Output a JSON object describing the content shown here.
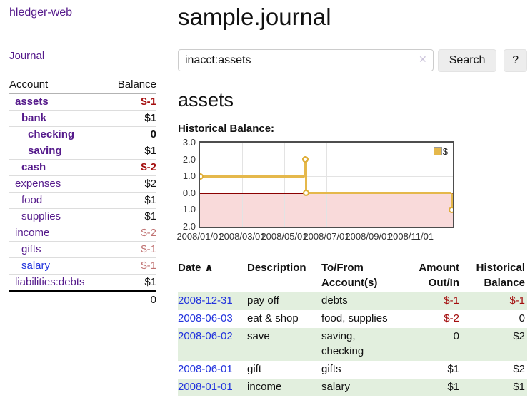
{
  "sidebar": {
    "brand": "hledger-web",
    "journal_label": "Journal",
    "accounts_table": {
      "headers": [
        "Account",
        "Balance"
      ],
      "rows": [
        {
          "name": "assets",
          "balance": "$-1",
          "depth": 1,
          "bold": true,
          "link": "purple",
          "balance_style": "neg-strong"
        },
        {
          "name": "bank",
          "balance": "$1",
          "depth": 2,
          "bold": true,
          "link": "purple",
          "balance_style": "normal"
        },
        {
          "name": "checking",
          "balance": "0",
          "depth": 3,
          "bold": true,
          "link": "purple",
          "balance_style": "normal"
        },
        {
          "name": "saving",
          "balance": "$1",
          "depth": 3,
          "bold": true,
          "link": "purple",
          "balance_style": "normal"
        },
        {
          "name": "cash",
          "balance": "$-2",
          "depth": 2,
          "bold": true,
          "link": "purple",
          "balance_style": "neg-strong"
        },
        {
          "name": "expenses",
          "balance": "$2",
          "depth": 1,
          "bold": false,
          "link": "purple",
          "balance_style": "normal"
        },
        {
          "name": "food",
          "balance": "$1",
          "depth": 2,
          "bold": false,
          "link": "purple",
          "balance_style": "normal"
        },
        {
          "name": "supplies",
          "balance": "$1",
          "depth": 2,
          "bold": false,
          "link": "purple",
          "balance_style": "normal"
        },
        {
          "name": "income",
          "balance": "$-2",
          "depth": 1,
          "bold": false,
          "link": "purple",
          "balance_style": "neg-muted"
        },
        {
          "name": "gifts",
          "balance": "$-1",
          "depth": 2,
          "bold": false,
          "link": "purple",
          "balance_style": "neg-muted"
        },
        {
          "name": "salary",
          "balance": "$-1",
          "depth": 2,
          "bold": false,
          "link": "blue",
          "balance_style": "neg-muted"
        },
        {
          "name": "liabilities:debts",
          "balance": "$1",
          "depth": 1,
          "bold": false,
          "link": "purple",
          "balance_style": "normal"
        }
      ],
      "total": "0"
    }
  },
  "header": {
    "title": "sample.journal"
  },
  "search": {
    "value": "inacct:assets",
    "clear_icon": "✕",
    "button_label": "Search",
    "help_label": "?"
  },
  "account_page": {
    "title": "assets",
    "chart_label": "Historical Balance:"
  },
  "chart_data": {
    "type": "line",
    "title": "Historical Balance:",
    "step": true,
    "x_range": [
      "2008-01-01",
      "2009-01-01"
    ],
    "ylim": [
      -2.0,
      3.0
    ],
    "y_ticks": [
      "3.0",
      "2.0",
      "1.0",
      "0.0",
      "-1.0",
      "-2.0"
    ],
    "x_tick_labels": [
      "2008/01/01",
      "2008/03/01",
      "2008/05/01",
      "2008/07/01",
      "2008/09/01",
      "2008/11/01"
    ],
    "grid": true,
    "legend": {
      "position": "top-right",
      "entries": [
        {
          "label": "$",
          "color": "#E5B84B"
        }
      ]
    },
    "series": [
      {
        "name": "$",
        "color": "#E5B84B",
        "marker": "open-circle",
        "points": [
          {
            "date": "2008-01-01",
            "value": 1
          },
          {
            "date": "2008-06-01",
            "value": 2
          },
          {
            "date": "2008-06-02",
            "value": 2
          },
          {
            "date": "2008-06-03",
            "value": 0
          },
          {
            "date": "2008-12-31",
            "value": -1
          }
        ]
      }
    ],
    "negative_region_color": "#F9DADA",
    "zero_line_color": "#8B0000"
  },
  "register_table": {
    "headers": {
      "date": "Date",
      "sort_indicator": "∧",
      "description": "Description",
      "accounts": "To/From\nAccount(s)",
      "amount": "Amount\nOut/In",
      "balance": "Historical\nBalance"
    },
    "rows": [
      {
        "date": "2008-12-31",
        "description": "pay off",
        "accounts": "debts",
        "amount": "$-1",
        "balance": "$-1"
      },
      {
        "date": "2008-06-03",
        "description": "eat & shop",
        "accounts": "food, supplies",
        "amount": "$-2",
        "balance": "0"
      },
      {
        "date": "2008-06-02",
        "description": "save",
        "accounts": "saving,\nchecking",
        "amount": "0",
        "balance": "$2"
      },
      {
        "date": "2008-06-01",
        "description": "gift",
        "accounts": "gifts",
        "amount": "$1",
        "balance": "$2"
      },
      {
        "date": "2008-01-01",
        "description": "income",
        "accounts": "salary",
        "amount": "$1",
        "balance": "$1"
      }
    ]
  },
  "colors": {
    "link_purple": "#551A8B",
    "link_blue": "#2233DD",
    "negative_strong": "#A40E0E",
    "negative_muted": "#C07272",
    "row_green": "#E2EFDE",
    "chart_gold": "#E5B84B",
    "chart_negative_region": "#F9DADA",
    "chart_zero_line": "#8B0000"
  }
}
